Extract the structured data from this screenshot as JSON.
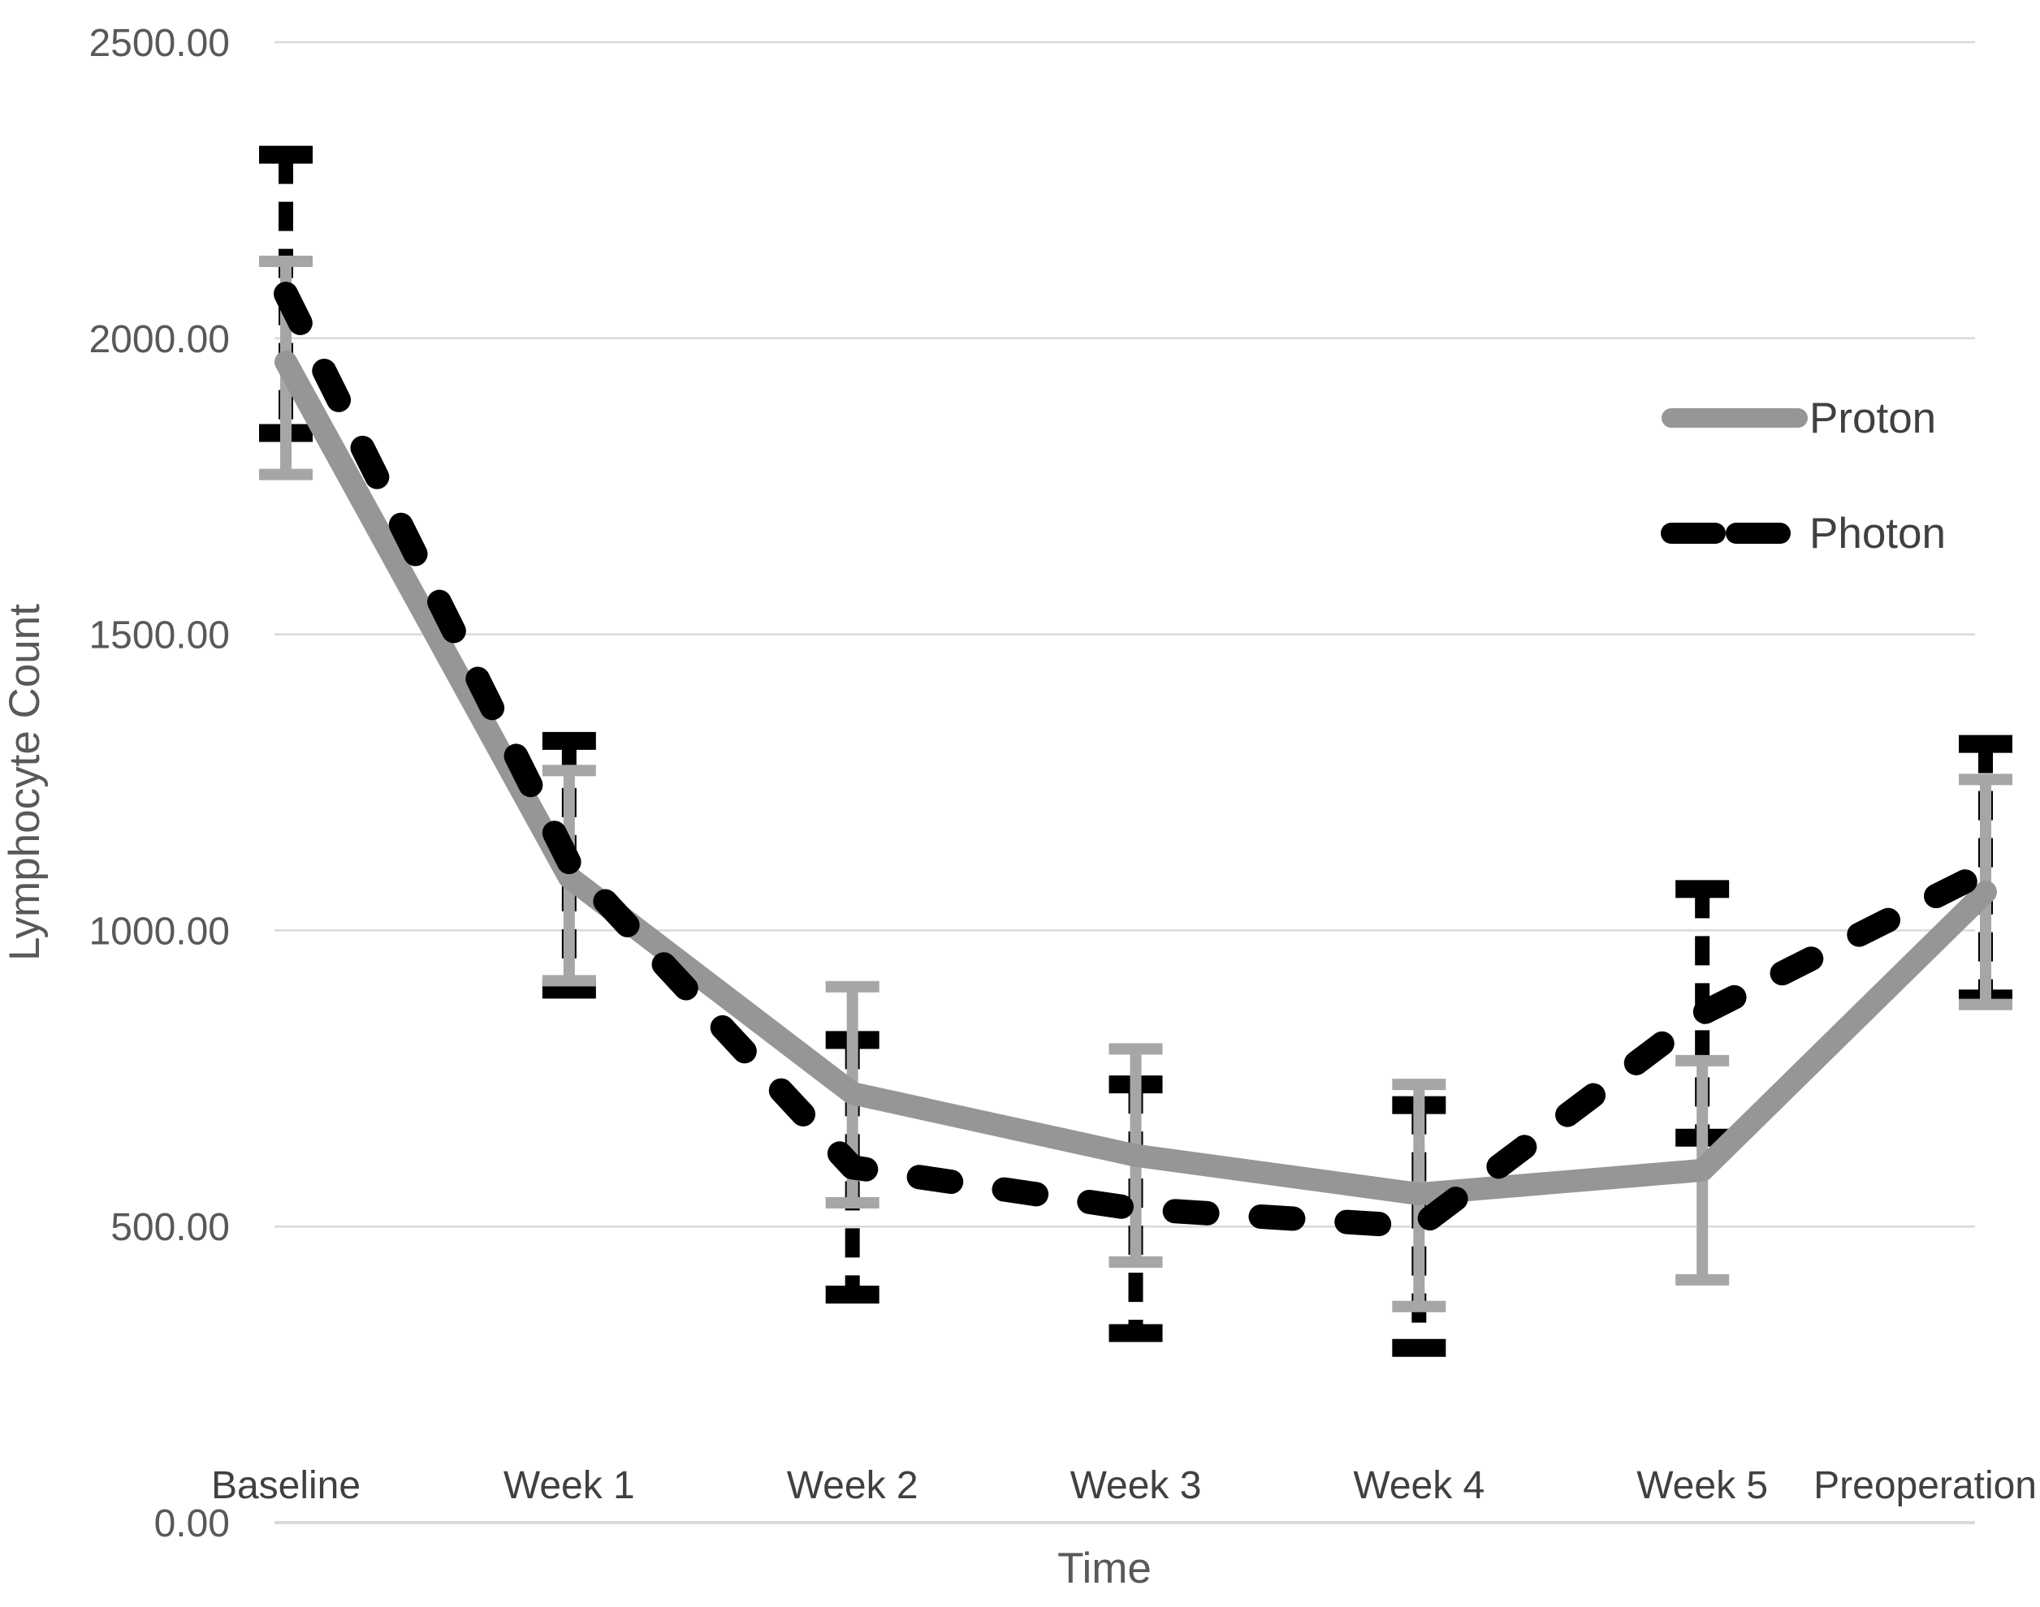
{
  "chart_data": {
    "type": "line",
    "title": "",
    "xlabel": "Time",
    "ylabel": "Lymphocyte Count",
    "categories": [
      "Baseline",
      "Week 1",
      "Week 2",
      "Week 3",
      "Week 4",
      "Week 5",
      "Preoperation"
    ],
    "ylim": [
      0,
      2500
    ],
    "yticks": [
      0,
      500,
      1000,
      1500,
      2000,
      2500
    ],
    "ytick_labels": [
      "0.00",
      "500.00",
      "1000.00",
      "1500.00",
      "2000.00",
      "2500.00"
    ],
    "grid": true,
    "legend_position": "upper-right",
    "series": [
      {
        "name": "Proton",
        "line_style": "solid",
        "color": "#969696",
        "error_color": "#a6a6a6",
        "values": [
          1960,
          1090,
          725,
          620,
          555,
          595,
          1065
        ],
        "err_low": [
          1770,
          915,
          540,
          440,
          365,
          410,
          875
        ],
        "err_high": [
          2130,
          1270,
          905,
          800,
          740,
          780,
          1255
        ]
      },
      {
        "name": "Photon",
        "line_style": "dashed",
        "color": "#000000",
        "error_color": "#000000",
        "values": [
          2075,
          1115,
          600,
          530,
          500,
          860,
          1100
        ],
        "err_low": [
          1840,
          900,
          385,
          320,
          295,
          650,
          885
        ],
        "err_high": [
          2310,
          1320,
          815,
          740,
          705,
          1070,
          1315
        ]
      }
    ]
  },
  "colors": {
    "background": "#ffffff",
    "gridline": "#d9d9d9",
    "tick_label": "#595959",
    "category_label": "#404040",
    "axis_title": "#595959",
    "legend_label": "#404040"
  }
}
